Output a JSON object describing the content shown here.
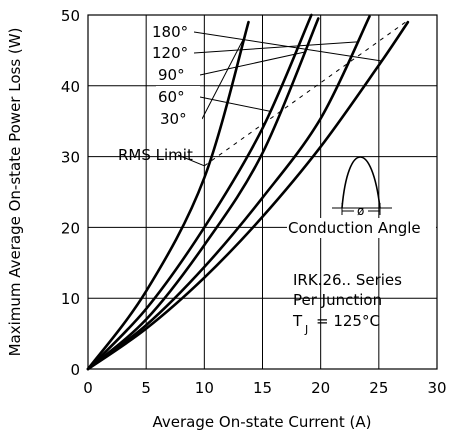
{
  "chart_data": {
    "type": "line",
    "xlabel": "Average On-state Current (A)",
    "ylabel": "Maximum Average On-state Power Loss (W)",
    "xlim": [
      0,
      30
    ],
    "ylim": [
      0,
      50
    ],
    "xticks": [
      "0",
      "5",
      "10",
      "15",
      "20",
      "25",
      "30"
    ],
    "yticks": [
      "0",
      "10",
      "20",
      "30",
      "40",
      "50"
    ],
    "grid": true,
    "series": [
      {
        "name": "180°",
        "x": [
          0,
          5,
          10,
          15,
          20,
          25,
          27.5
        ],
        "y": [
          0,
          5.7,
          12.9,
          21.5,
          31.4,
          42.9,
          49
        ]
      },
      {
        "name": "120°",
        "x": [
          0,
          5,
          10,
          15,
          20,
          24.2
        ],
        "y": [
          0,
          6.2,
          14.4,
          24.2,
          35.4,
          49.8
        ]
      },
      {
        "name": "90°",
        "x": [
          0,
          5,
          10,
          15,
          19.8
        ],
        "y": [
          0,
          7,
          17.5,
          30.5,
          49.5
        ]
      },
      {
        "name": "60°",
        "x": [
          0,
          5,
          10,
          15,
          19.2
        ],
        "y": [
          0,
          8.5,
          20,
          34,
          50
        ]
      },
      {
        "name": "30°",
        "x": [
          0,
          5,
          10,
          13.8
        ],
        "y": [
          0,
          11,
          27,
          49
        ]
      }
    ],
    "rms_limit": {
      "label": "RMS Limit",
      "x": [
        10,
        27.3
      ],
      "y": [
        28.7,
        49
      ]
    },
    "annotations": {
      "conduction_angle": "Conduction Angle",
      "phi": "ø",
      "series_line1": "IRK.26.. Series",
      "series_line2": "Per Junction",
      "temp_T": "T",
      "temp_J": "J",
      "temp_value": "= 125°C"
    }
  }
}
